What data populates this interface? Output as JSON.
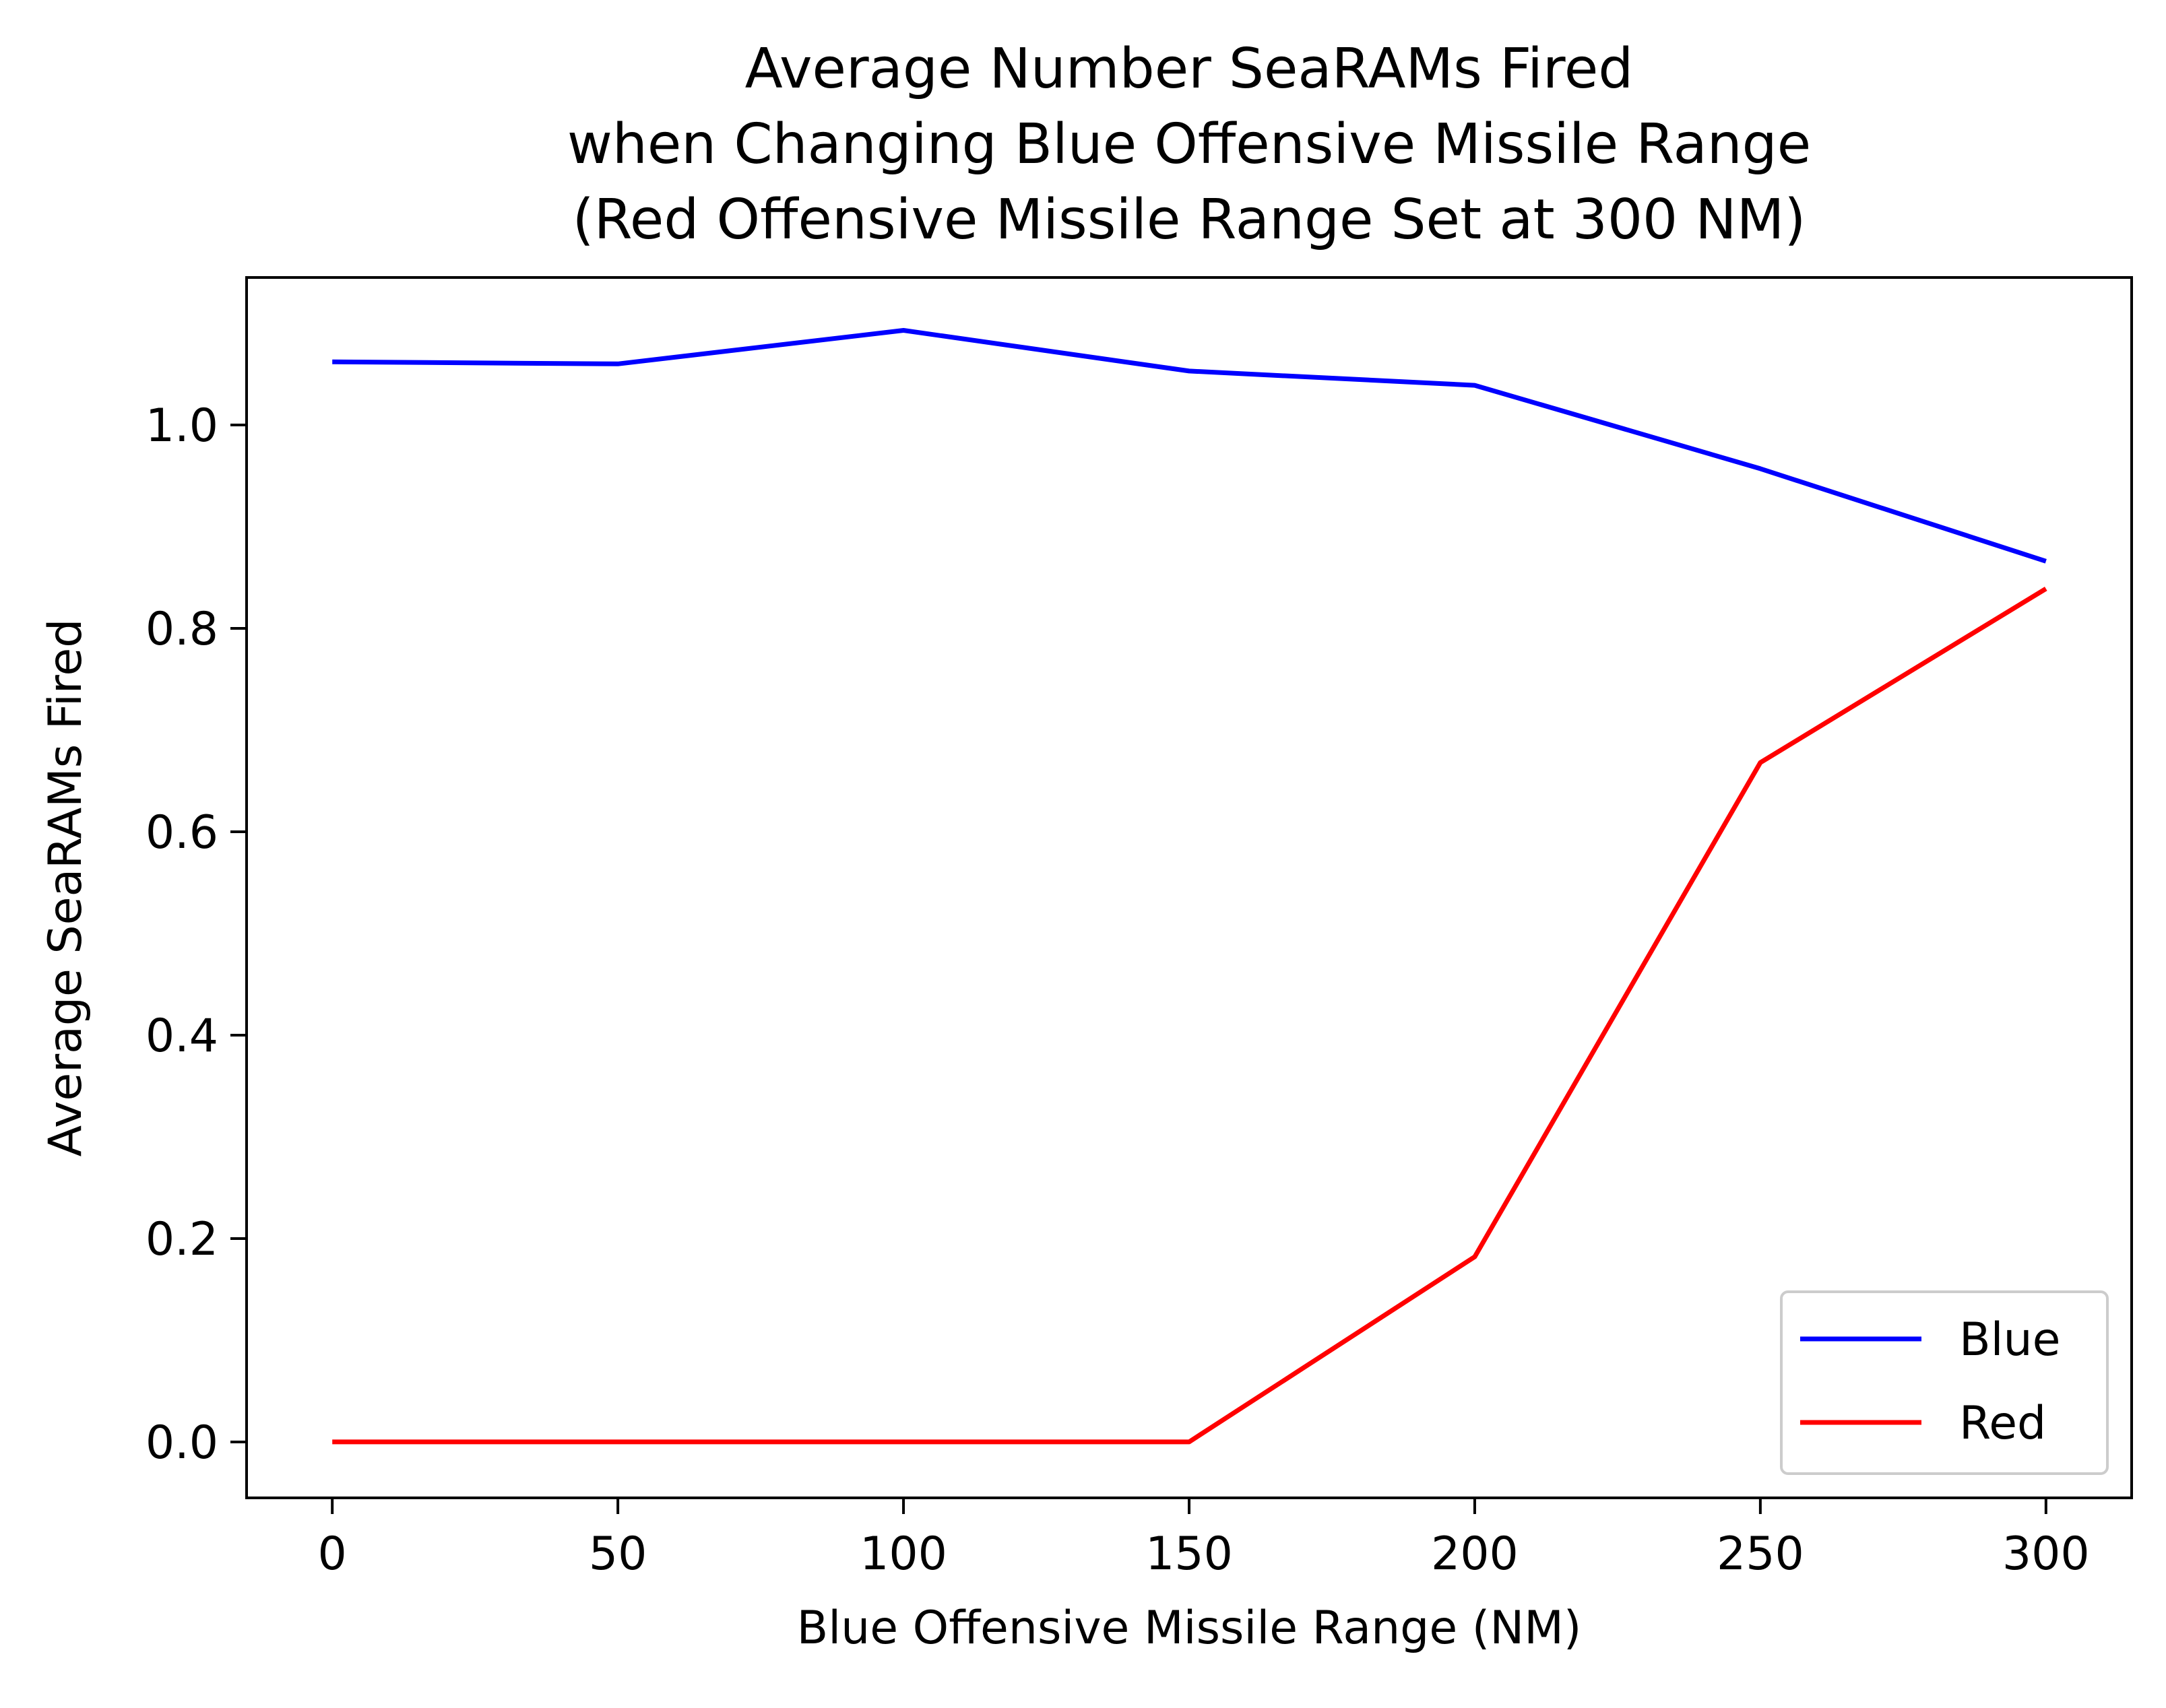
{
  "chart_data": {
    "type": "line",
    "title_lines": [
      "Average Number SeaRAMs Fired",
      "when Changing Blue Offensive Missile Range",
      "(Red Offensive Missile Range Set at 300 NM)"
    ],
    "xlabel": "Blue Offensive Missile Range (NM)",
    "ylabel": "Average SeaRAMs Fired",
    "x": [
      0,
      50,
      100,
      150,
      200,
      250,
      300
    ],
    "xlim": [
      -15,
      315
    ],
    "ylim": [
      -0.055,
      1.145
    ],
    "xticks": [
      0,
      50,
      100,
      150,
      200,
      250,
      300
    ],
    "xtick_labels": [
      "0",
      "50",
      "100",
      "150",
      "200",
      "250",
      "300"
    ],
    "yticks": [
      0.0,
      0.2,
      0.4,
      0.6,
      0.8,
      1.0
    ],
    "ytick_labels": [
      "0.0",
      "0.2",
      "0.4",
      "0.6",
      "0.8",
      "1.0"
    ],
    "grid": false,
    "legend_position": "bottom-right",
    "series": [
      {
        "name": "Blue",
        "color": "#0000ff",
        "values": [
          1.062,
          1.06,
          1.093,
          1.053,
          1.039,
          0.957,
          0.866
        ]
      },
      {
        "name": "Red",
        "color": "#ff0000",
        "values": [
          0.0,
          0.0,
          0.0,
          0.0,
          0.182,
          0.668,
          0.839
        ]
      }
    ]
  }
}
